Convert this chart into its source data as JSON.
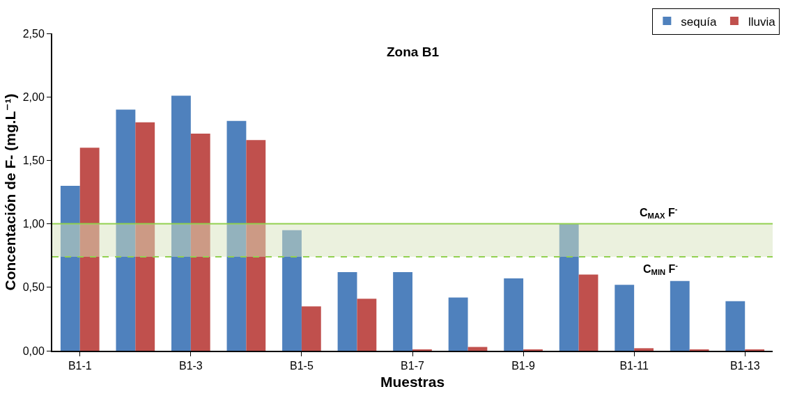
{
  "chart_data": {
    "type": "bar",
    "title": "Zona B1",
    "xlabel": "Muestras",
    "ylabel": "Concentación de F- (mg.L⁻¹)",
    "categories": [
      "B1-1",
      null,
      "B1-3",
      null,
      "B1-5",
      null,
      "B1-7",
      null,
      "B1-9",
      null,
      "B1-11",
      null,
      "B1-13"
    ],
    "series": [
      {
        "name": "sequía",
        "color": "#4f81bd",
        "values": [
          1.3,
          1.9,
          2.01,
          1.81,
          0.95,
          0.62,
          0.62,
          0.42,
          0.57,
          1.0,
          0.52,
          0.55,
          0.39
        ]
      },
      {
        "name": "lluvia",
        "color": "#c0504d",
        "values": [
          1.6,
          1.8,
          1.71,
          1.66,
          0.35,
          0.41,
          0.01,
          0.03,
          0.01,
          0.6,
          0.02,
          0.01,
          0.01
        ]
      }
    ],
    "ylim": [
      0,
      2.5
    ],
    "yticks": [
      {
        "value": 0,
        "label": "0,00"
      },
      {
        "value": 0.5,
        "label": "0,50"
      },
      {
        "value": 1,
        "label": "1,00"
      },
      {
        "value": 1.5,
        "label": "1,50"
      },
      {
        "value": 2,
        "label": "2,00"
      },
      {
        "value": 2.5,
        "label": "2,50"
      }
    ],
    "ref_lines": [
      {
        "axis": "y",
        "value": 1.0,
        "label": "C$_{MAX}$ F$^{-}$",
        "color": "#92d050",
        "line_style": "solid"
      },
      {
        "axis": "y",
        "value": 0.74,
        "label": "C$_{MIN}$ F$^{-}$",
        "color": "#92d050",
        "line_style": "dashed"
      }
    ],
    "bands": [
      {
        "axis": "y",
        "from": 0.74,
        "to": 1.0,
        "color": "#d7e4bd"
      }
    ],
    "grid": false,
    "legend": "top right"
  }
}
